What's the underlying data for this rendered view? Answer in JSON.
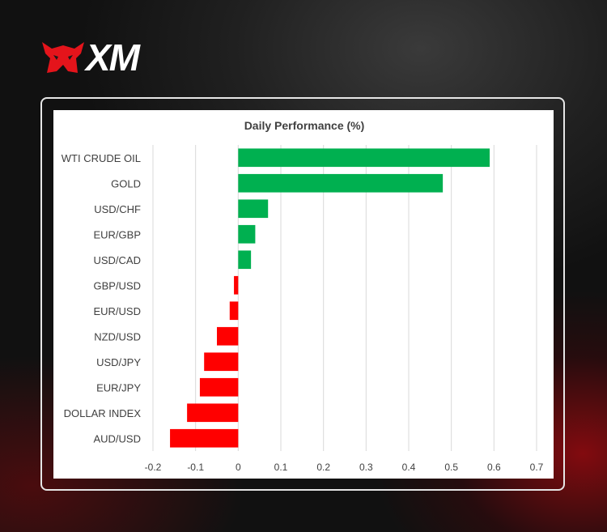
{
  "brand": {
    "logo_text": "XM"
  },
  "chart_data": {
    "type": "bar",
    "orientation": "horizontal",
    "title": "Daily Performance (%)",
    "xlabel": "",
    "ylabel": "",
    "xlim": [
      -0.2,
      0.7
    ],
    "xticks": [
      "-0.2",
      "-0.1",
      "0",
      "0.1",
      "0.2",
      "0.3",
      "0.4",
      "0.5",
      "0.6",
      "0.7"
    ],
    "grid": true,
    "legend": "none",
    "categories": [
      "WTI CRUDE OIL",
      "GOLD",
      "USD/CHF",
      "EUR/GBP",
      "USD/CAD",
      "GBP/USD",
      "EUR/USD",
      "NZD/USD",
      "USD/JPY",
      "EUR/JPY",
      "DOLLAR INDEX",
      "AUD/USD"
    ],
    "values": [
      0.59,
      0.48,
      0.07,
      0.04,
      0.03,
      -0.01,
      -0.02,
      -0.05,
      -0.08,
      -0.09,
      -0.12,
      -0.16
    ],
    "colors": {
      "positive": "#00b050",
      "negative": "#ff0000",
      "grid": "#d9d9d9"
    }
  }
}
